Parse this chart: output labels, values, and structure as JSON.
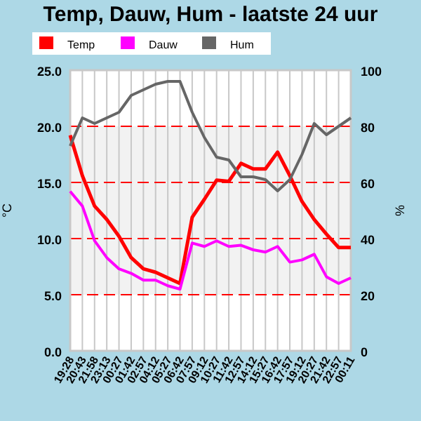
{
  "chart_data": {
    "type": "line",
    "title": "Temp, Dauw, Hum - laatste 24 uur",
    "ylabel": "°C",
    "y2label": "%",
    "categories": [
      "19:28",
      "20:43",
      "21:58",
      "23:13",
      "00:27",
      "01:42",
      "02:57",
      "04:12",
      "05:27",
      "06:42",
      "07:57",
      "09:12",
      "10:27",
      "11:42",
      "12:57",
      "14:12",
      "15:27",
      "16:42",
      "17:57",
      "19:12",
      "20:27",
      "21:42",
      "22:57",
      "00:11"
    ],
    "series": [
      {
        "name": "Temp",
        "color": "#ff0000",
        "values": [
          19.2,
          15.6,
          12.9,
          11.7,
          10.2,
          8.3,
          7.3,
          7.0,
          6.5,
          6.0,
          11.9,
          13.5,
          15.2,
          15.1,
          16.7,
          16.2,
          16.2,
          17.7,
          15.6,
          13.3,
          11.7,
          10.4,
          9.2,
          9.2
        ]
      },
      {
        "name": "Dauw",
        "color": "#ff00ff",
        "values": [
          14.2,
          12.9,
          9.8,
          8.3,
          7.3,
          6.9,
          6.3,
          6.3,
          5.8,
          5.5,
          9.6,
          9.3,
          9.8,
          9.3,
          9.4,
          9.0,
          8.8,
          9.3,
          7.9,
          8.1,
          8.6,
          6.6,
          6.0,
          6.5
        ]
      },
      {
        "name": "Hum",
        "color": "#666666",
        "axis": "y2",
        "values": [
          73,
          83,
          81,
          83,
          85,
          91,
          93,
          95,
          96,
          96,
          85,
          76,
          69,
          68,
          62,
          62,
          61,
          57,
          61,
          70,
          81,
          77,
          80,
          83
        ]
      }
    ],
    "ylim": [
      0,
      25
    ],
    "yticks": [
      {
        "value": 0,
        "label": "0.0"
      },
      {
        "value": 5,
        "label": "5.0"
      },
      {
        "value": 10,
        "label": "10.0"
      },
      {
        "value": 15,
        "label": "15.0"
      },
      {
        "value": 20,
        "label": "20.0"
      },
      {
        "value": 25,
        "label": "25.0"
      }
    ],
    "y2lim": [
      0,
      100
    ],
    "y2ticks": [
      0,
      20,
      40,
      60,
      80,
      100
    ],
    "bands": [
      {
        "axis": "y",
        "from": 5,
        "to": 20,
        "color": "#f2f2f2"
      }
    ],
    "grid": true,
    "legend": "top left",
    "marker": "none",
    "line_style": "solid"
  }
}
